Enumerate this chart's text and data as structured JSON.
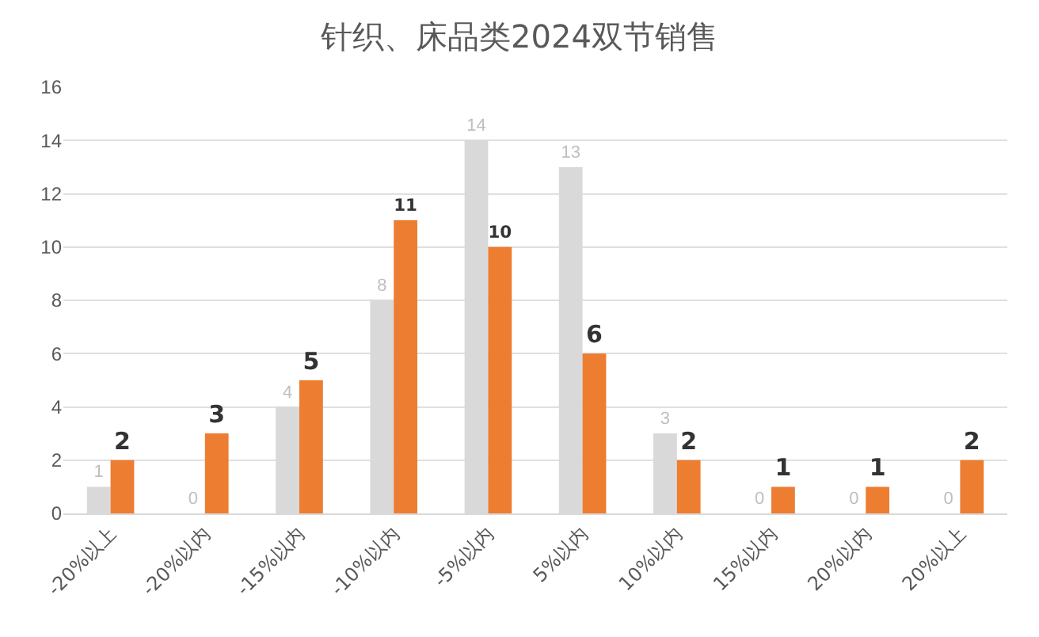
{
  "chart_data": {
    "type": "bar",
    "title": "针织、床品类2024双节销售",
    "categories": [
      "-20%以上",
      "-20%以内",
      "-15%以内",
      "-10%以内",
      "-5%以内",
      "5%以内",
      "10%以内",
      "15%以内",
      "20%以内",
      "20%以上"
    ],
    "series": [
      {
        "color": "#d9d9d9",
        "values": [
          1,
          0,
          4,
          8,
          14,
          13,
          3,
          0,
          0,
          0
        ]
      },
      {
        "color": "#ed7d31",
        "values": [
          2,
          3,
          5,
          11,
          10,
          6,
          2,
          1,
          1,
          2
        ]
      }
    ],
    "ylim": [
      0,
      16
    ],
    "yticks": [
      0,
      2,
      4,
      6,
      8,
      10,
      12,
      14,
      16
    ],
    "grid": "y",
    "data_labels": true,
    "legend": false
  }
}
